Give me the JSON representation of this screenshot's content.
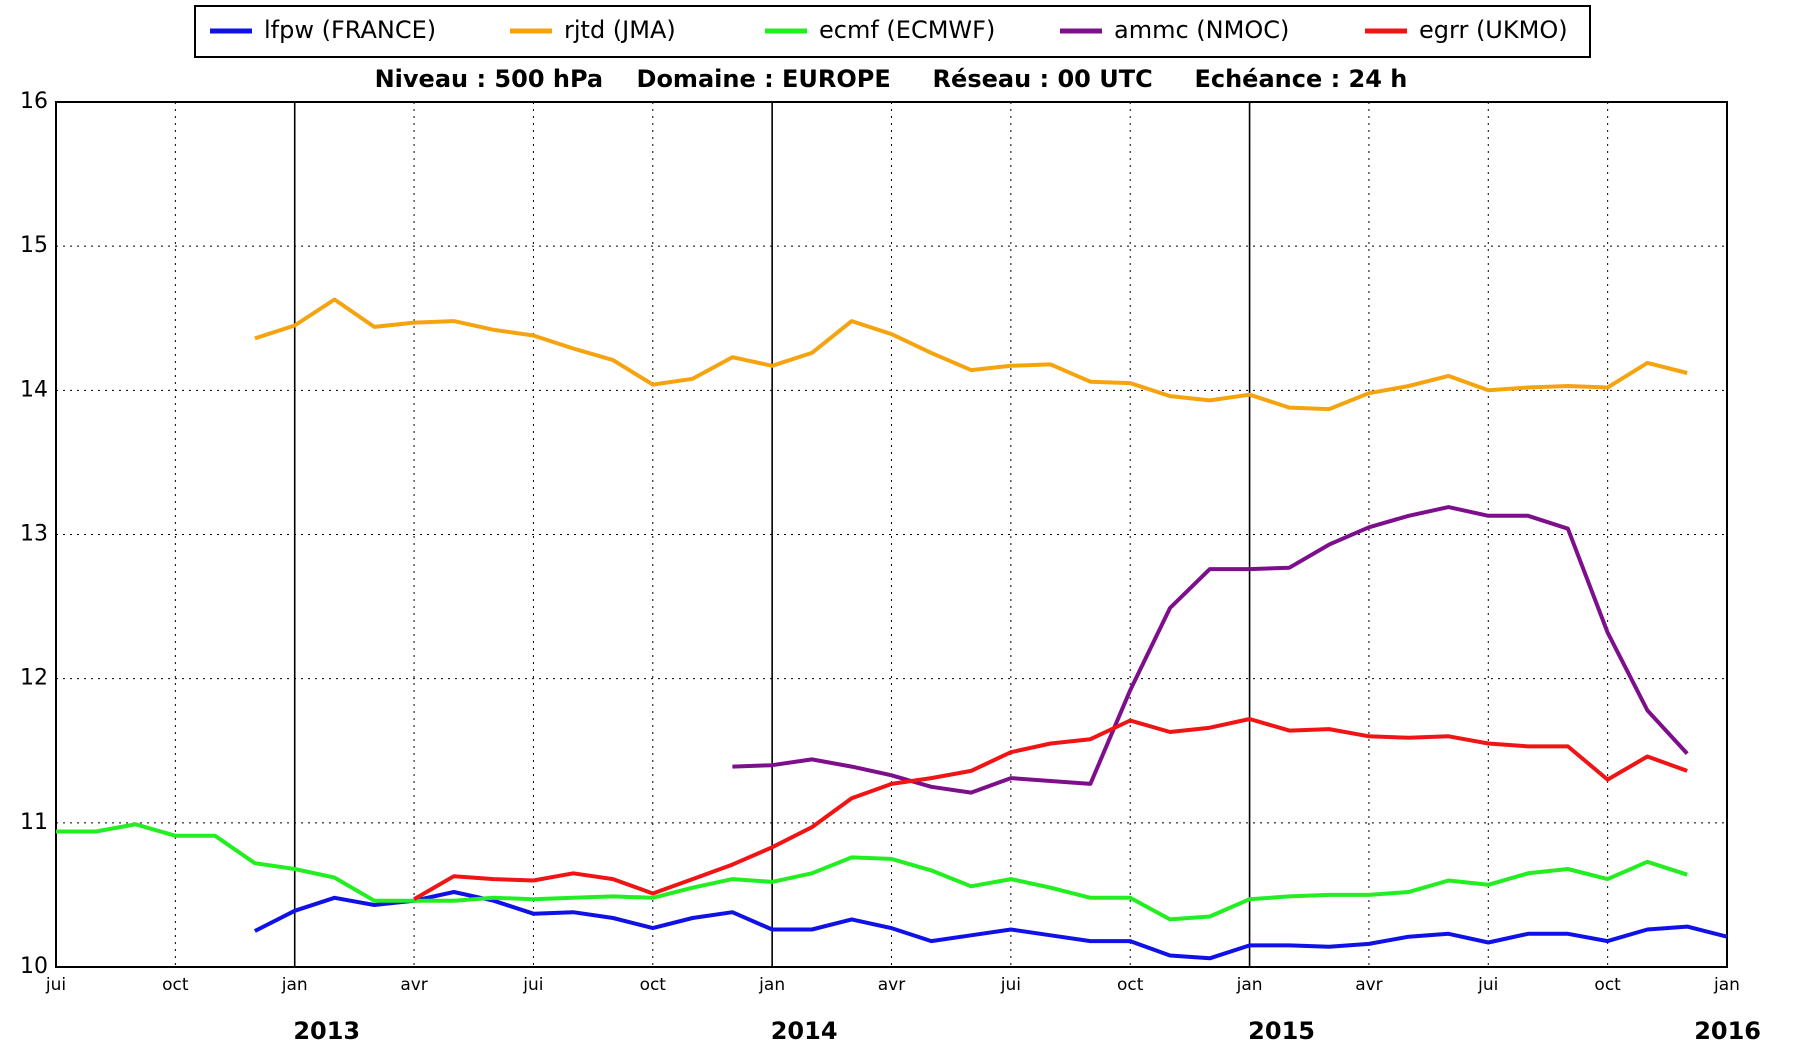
{
  "chart_data": {
    "type": "line",
    "title": "Niveau : 500 hPa    Domaine : EUROPE     Réseau : 00 UTC     Echéance : 24 h",
    "x": [
      "2012-07",
      "2012-08",
      "2012-09",
      "2012-10",
      "2012-11",
      "2012-12",
      "2013-01",
      "2013-02",
      "2013-03",
      "2013-04",
      "2013-05",
      "2013-06",
      "2013-07",
      "2013-08",
      "2013-09",
      "2013-10",
      "2013-11",
      "2013-12",
      "2014-01",
      "2014-02",
      "2014-03",
      "2014-04",
      "2014-05",
      "2014-06",
      "2014-07",
      "2014-08",
      "2014-09",
      "2014-10",
      "2014-11",
      "2014-12",
      "2015-01",
      "2015-02",
      "2015-03",
      "2015-04",
      "2015-05",
      "2015-06",
      "2015-07",
      "2015-08",
      "2015-09",
      "2015-10",
      "2015-11",
      "2015-12",
      "2016-01"
    ],
    "series": [
      {
        "name": "lfpw (FRANCE)",
        "color": "#1010e8",
        "values": [
          null,
          null,
          null,
          null,
          null,
          10.25,
          10.39,
          10.48,
          10.43,
          10.46,
          10.52,
          10.46,
          10.37,
          10.38,
          10.34,
          10.27,
          10.34,
          10.38,
          10.26,
          10.26,
          10.33,
          10.27,
          10.18,
          10.22,
          10.26,
          10.22,
          10.18,
          10.18,
          10.08,
          10.06,
          10.15,
          10.15,
          10.14,
          10.16,
          10.21,
          10.23,
          10.17,
          10.23,
          10.23,
          10.18,
          10.26,
          10.28,
          10.21
        ]
      },
      {
        "name": "rjtd (JMA)",
        "color": "#f5a410",
        "values": [
          null,
          null,
          null,
          null,
          null,
          14.36,
          14.45,
          14.63,
          14.44,
          14.47,
          14.48,
          14.42,
          14.38,
          14.29,
          14.21,
          14.04,
          14.08,
          14.23,
          14.17,
          14.26,
          14.48,
          14.39,
          14.26,
          14.14,
          14.17,
          14.18,
          14.06,
          14.05,
          13.96,
          13.93,
          13.97,
          13.88,
          13.87,
          13.98,
          14.03,
          14.1,
          14.0,
          14.02,
          14.03,
          14.02,
          14.19,
          14.12,
          null
        ]
      },
      {
        "name": "ecmf (ECMWF)",
        "color": "#22ee22",
        "values": [
          10.94,
          10.94,
          10.99,
          10.91,
          10.91,
          10.72,
          10.68,
          10.62,
          10.46,
          10.46,
          10.46,
          10.48,
          10.47,
          10.48,
          10.49,
          10.48,
          10.55,
          10.61,
          10.59,
          10.65,
          10.76,
          10.75,
          10.67,
          10.56,
          10.61,
          10.55,
          10.48,
          10.48,
          10.33,
          10.35,
          10.47,
          10.49,
          10.5,
          10.5,
          10.52,
          10.6,
          10.57,
          10.65,
          10.68,
          10.61,
          10.73,
          10.64,
          null
        ]
      },
      {
        "name": "ammc (NMOC)",
        "color": "#7d0f8c",
        "values": [
          null,
          null,
          null,
          null,
          null,
          null,
          null,
          null,
          null,
          null,
          null,
          null,
          null,
          null,
          null,
          null,
          null,
          11.39,
          11.4,
          11.44,
          11.39,
          11.33,
          11.25,
          11.21,
          11.31,
          11.29,
          11.27,
          11.92,
          12.49,
          12.76,
          12.76,
          12.77,
          12.93,
          13.05,
          13.13,
          13.19,
          13.13,
          13.13,
          13.04,
          12.32,
          11.78,
          11.48,
          null
        ]
      },
      {
        "name": "egrr (UKMO)",
        "color": "#f01414",
        "values": [
          null,
          null,
          null,
          null,
          null,
          null,
          null,
          null,
          null,
          10.47,
          10.63,
          10.61,
          10.6,
          10.65,
          10.61,
          10.51,
          10.61,
          10.71,
          10.83,
          10.97,
          11.17,
          11.27,
          11.31,
          11.36,
          11.49,
          11.55,
          11.58,
          11.71,
          11.63,
          11.66,
          11.72,
          11.64,
          11.65,
          11.6,
          11.59,
          11.6,
          11.55,
          11.53,
          11.53,
          11.3,
          11.46,
          11.36,
          null
        ]
      }
    ],
    "xlim": [
      "2012-07",
      "2016-01"
    ],
    "xticks": [
      {
        "value": "2012-07",
        "label": "jui"
      },
      {
        "value": "2012-10",
        "label": "oct"
      },
      {
        "value": "2013-01",
        "label": "jan"
      },
      {
        "value": "2013-04",
        "label": "avr"
      },
      {
        "value": "2013-07",
        "label": "jui"
      },
      {
        "value": "2013-10",
        "label": "oct"
      },
      {
        "value": "2014-01",
        "label": "jan"
      },
      {
        "value": "2014-04",
        "label": "avr"
      },
      {
        "value": "2014-07",
        "label": "jui"
      },
      {
        "value": "2014-10",
        "label": "oct"
      },
      {
        "value": "2015-01",
        "label": "jan"
      },
      {
        "value": "2015-04",
        "label": "avr"
      },
      {
        "value": "2015-07",
        "label": "jui"
      },
      {
        "value": "2015-10",
        "label": "oct"
      },
      {
        "value": "2016-01",
        "label": "jan"
      }
    ],
    "year_ticks": [
      {
        "value": "2013-01",
        "label": "2013"
      },
      {
        "value": "2014-01",
        "label": "2014"
      },
      {
        "value": "2015-01",
        "label": "2015"
      },
      {
        "value": "2016-01",
        "label": "2016"
      }
    ],
    "ylim": [
      10,
      16
    ],
    "yticks": [
      10,
      11,
      12,
      13,
      14,
      15,
      16
    ],
    "grid": true,
    "legend": "top"
  }
}
